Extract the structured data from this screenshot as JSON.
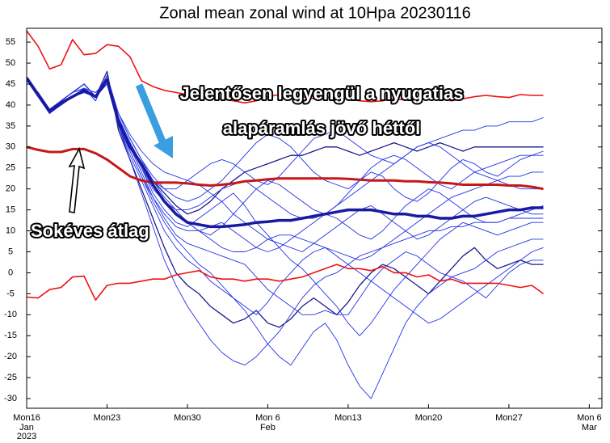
{
  "chart_data": {
    "type": "line",
    "title": "Zonal mean zonal wind at 10Hpa 20230116",
    "xlim": [
      0,
      50.1
    ],
    "ylim": [
      -32.3,
      58.3
    ],
    "yticks": [
      -30,
      -25,
      -20,
      -15,
      -10,
      -5,
      0,
      5,
      10,
      15,
      20,
      25,
      30,
      35,
      40,
      45,
      50,
      55
    ],
    "xticks": [
      {
        "value": 0,
        "label": "Mon16",
        "sub": [
          "Jan",
          "2023"
        ]
      },
      {
        "value": 7,
        "label": "Mon23"
      },
      {
        "value": 14,
        "label": "Mon30"
      },
      {
        "value": 21,
        "label": "Mon 6",
        "sub": [
          "Feb"
        ]
      },
      {
        "value": 28,
        "label": "Mon13"
      },
      {
        "value": 35,
        "label": "Mon20"
      },
      {
        "value": 42,
        "label": "Mon27"
      },
      {
        "value": 49,
        "label": "Mon 6",
        "sub": [
          "Mar"
        ]
      }
    ],
    "x": [
      0,
      1,
      2,
      3,
      4,
      5,
      6,
      7,
      8,
      9,
      10,
      11,
      12,
      13,
      14,
      15,
      16,
      17,
      18,
      19,
      20,
      21,
      22,
      23,
      24,
      25,
      26,
      27,
      28,
      29,
      30,
      31,
      32,
      33,
      34,
      35,
      36,
      37,
      38,
      39,
      40,
      41,
      42,
      43,
      44,
      45
    ],
    "series": [
      {
        "color": "#2233e6",
        "width": 0.9,
        "values": [
          46,
          43,
          39,
          40,
          42,
          44,
          41,
          47,
          38,
          32,
          27,
          22,
          18,
          15,
          12,
          10,
          9,
          11,
          14,
          17,
          20,
          22,
          21,
          19,
          17,
          15,
          14,
          16,
          19,
          22,
          24,
          23,
          20,
          18,
          17,
          19,
          22,
          25,
          27,
          26,
          24,
          23,
          25,
          27,
          28,
          29
        ]
      },
      {
        "color": "#1b1b8a",
        "width": 1.3,
        "values": [
          46,
          42,
          38,
          41,
          43,
          45,
          42,
          48,
          34,
          27,
          20,
          13,
          6,
          0,
          -3,
          -5,
          -8,
          -10,
          -12,
          -11,
          -9,
          -12,
          -13,
          -11,
          -8,
          -6,
          -8,
          -10,
          -7,
          -3,
          0,
          2,
          1,
          -1,
          -3,
          -5,
          -2,
          1,
          4,
          6,
          3,
          1,
          2,
          3,
          2,
          2
        ]
      },
      {
        "color": "#1b1b8a",
        "width": 1.3,
        "values": [
          46,
          42,
          39,
          40,
          42,
          43,
          42,
          46,
          37,
          31,
          26,
          22,
          19,
          16,
          14,
          15,
          17,
          20,
          22,
          24,
          25,
          26,
          27,
          28,
          28,
          29,
          30,
          30,
          29,
          28,
          29,
          30,
          31,
          30,
          29,
          30,
          31,
          30,
          29,
          30,
          30,
          30,
          30,
          30,
          30,
          30
        ]
      },
      {
        "color": "#2233e6",
        "width": 0.9,
        "values": [
          46,
          43,
          39,
          41,
          43,
          44,
          43,
          45,
          36,
          29,
          23,
          17,
          12,
          8,
          5,
          2,
          0,
          -3,
          -6,
          -9,
          -13,
          -17,
          -20,
          -22,
          -18,
          -14,
          -12,
          -16,
          -22,
          -27,
          -30,
          -24,
          -18,
          -12,
          -8,
          -5,
          -3,
          -1,
          0,
          1,
          3,
          5,
          6,
          7,
          8,
          8
        ]
      },
      {
        "color": "#2233e6",
        "width": 0.9,
        "values": [
          46,
          42,
          38,
          40,
          42,
          44,
          41,
          47,
          37,
          30,
          25,
          20,
          17,
          15,
          15,
          16,
          18,
          20,
          21,
          22,
          20,
          18,
          16,
          14,
          13,
          13,
          14,
          16,
          18,
          20,
          22,
          24,
          26,
          28,
          30,
          31,
          32,
          33,
          34,
          34,
          35,
          35,
          36,
          36,
          36,
          37
        ]
      },
      {
        "color": "#2233e6",
        "width": 0.9,
        "values": [
          46,
          42,
          39,
          41,
          43,
          45,
          42,
          46,
          35,
          28,
          22,
          16,
          10,
          6,
          3,
          1,
          -2,
          -4,
          -6,
          -8,
          -10,
          -7,
          -3,
          0,
          3,
          5,
          6,
          4,
          2,
          0,
          -2,
          -4,
          -6,
          -8,
          -10,
          -12,
          -11,
          -9,
          -7,
          -5,
          -3,
          -1,
          1,
          3,
          5,
          6
        ]
      },
      {
        "color": "#2233e6",
        "width": 0.9,
        "values": [
          46,
          43,
          38,
          40,
          42,
          43,
          42,
          45,
          38,
          33,
          29,
          26,
          24,
          23,
          22,
          21,
          19,
          17,
          14,
          12,
          10,
          8,
          7,
          6,
          5,
          7,
          9,
          11,
          13,
          15,
          16,
          14,
          12,
          10,
          8,
          9,
          11,
          13,
          15,
          17,
          18,
          17,
          16,
          15,
          14,
          14
        ]
      },
      {
        "color": "#2233e6",
        "width": 0.9,
        "values": [
          46,
          42,
          39,
          41,
          43,
          44,
          42,
          47,
          36,
          30,
          24,
          18,
          13,
          9,
          7,
          6,
          5,
          4,
          3,
          2,
          -1,
          -4,
          -6,
          -8,
          -10,
          -10,
          -9,
          -10,
          -10,
          -6,
          -2,
          1,
          3,
          5,
          4,
          2,
          0,
          -1,
          -2,
          -4,
          -6,
          -3,
          0,
          2,
          3,
          3
        ]
      },
      {
        "color": "#2233e6",
        "width": 0.9,
        "values": [
          46,
          42,
          39,
          40,
          42,
          44,
          43,
          46,
          38,
          32,
          27,
          23,
          20,
          18,
          17,
          18,
          20,
          22,
          25,
          28,
          31,
          33,
          32,
          30,
          27,
          24,
          22,
          21,
          20,
          22,
          25,
          27,
          28,
          27,
          25,
          23,
          21,
          20,
          22,
          24,
          25,
          26,
          27,
          28,
          28,
          28
        ]
      },
      {
        "color": "#2233e6",
        "width": 0.9,
        "values": [
          46,
          43,
          38,
          41,
          43,
          45,
          42,
          46,
          35,
          29,
          23,
          18,
          14,
          11,
          10,
          10,
          11,
          12,
          10,
          8,
          6,
          5,
          6,
          8,
          10,
          12,
          14,
          13,
          11,
          9,
          8,
          10,
          13,
          16,
          18,
          20,
          19,
          17,
          15,
          13,
          12,
          12,
          13,
          14,
          15,
          16
        ]
      },
      {
        "color": "#2233e6",
        "width": 0.9,
        "values": [
          46,
          42,
          39,
          40,
          42,
          43,
          42,
          47,
          37,
          31,
          25,
          19,
          15,
          12,
          11,
          13,
          15,
          17,
          19,
          16,
          12,
          9,
          6,
          3,
          1,
          -2,
          -5,
          -8,
          -12,
          -15,
          -12,
          -8,
          -4,
          -1,
          2,
          5,
          8,
          10,
          12,
          11,
          10,
          9,
          10,
          11,
          12,
          12
        ]
      },
      {
        "color": "#2233e6",
        "width": 0.9,
        "values": [
          46,
          42,
          38,
          41,
          43,
          44,
          42,
          46,
          36,
          30,
          26,
          22,
          20,
          20,
          22,
          24,
          26,
          27,
          26,
          24,
          22,
          21,
          23,
          26,
          29,
          32,
          33,
          34,
          32,
          30,
          28,
          27,
          26,
          28,
          30,
          31,
          30,
          28,
          26,
          24,
          23,
          22,
          21,
          20,
          20,
          20
        ]
      },
      {
        "color": "#2233e6",
        "width": 0.9,
        "values": [
          46,
          43,
          39,
          40,
          42,
          44,
          42,
          45,
          35,
          27,
          19,
          11,
          3,
          -3,
          -8,
          -12,
          -16,
          -19,
          -21,
          -22,
          -20,
          -17,
          -14,
          -10,
          -6,
          -3,
          -1,
          0,
          2,
          4,
          5,
          6,
          7,
          8,
          9,
          10,
          10,
          11,
          11,
          12,
          12,
          12,
          13,
          13,
          13,
          13
        ]
      },
      {
        "color": "#2233e6",
        "width": 0.9,
        "values": [
          46,
          42,
          39,
          41,
          43,
          45,
          42,
          47,
          37,
          31,
          26,
          21,
          17,
          14,
          12,
          10,
          8,
          6,
          5,
          5,
          6,
          8,
          9,
          9,
          8,
          7,
          6,
          5,
          4,
          3,
          4,
          6,
          8,
          10,
          12,
          14,
          16,
          18,
          19,
          20,
          21,
          22,
          23,
          23,
          24,
          24
        ]
      },
      {
        "color": "#ee1111",
        "width": 1.6,
        "values": [
          57.7,
          54,
          48.6,
          49.6,
          55.6,
          52,
          52.3,
          54.4,
          54,
          51.5,
          45.8,
          44.4,
          43.5,
          43,
          42.5,
          42.8,
          42,
          41.5,
          41,
          40.5,
          41,
          42,
          42.5,
          42.2,
          42,
          41.5,
          41.8,
          42,
          41.5,
          41,
          40.8,
          41,
          41.5,
          41.2,
          41.5,
          42,
          41.5,
          41,
          41.5,
          42,
          42.3,
          42,
          41.8,
          42.5,
          42.3,
          42.3
        ]
      },
      {
        "color": "#ee1111",
        "width": 1.6,
        "values": [
          -5.8,
          -6,
          -4,
          -3.5,
          -1,
          -0.8,
          -6.5,
          -3,
          -2.5,
          -2.5,
          -2,
          -1.5,
          -1.5,
          -0.5,
          0,
          0.5,
          -1,
          -1.5,
          -1.5,
          -2,
          -1.5,
          -1.5,
          -2,
          -1.5,
          -1,
          0,
          1,
          2,
          1,
          1,
          0.5,
          1.5,
          0,
          0,
          -1,
          -0.5,
          -2,
          -1.5,
          -2.5,
          -2.5,
          -2.5,
          -2.5,
          -3,
          -3.5,
          -3,
          -5
        ]
      },
      {
        "color": "#c41818",
        "width": 3,
        "values": [
          30,
          29.3,
          28.8,
          28.8,
          29.5,
          29.5,
          28.5,
          27,
          25,
          23,
          22,
          21.5,
          21.5,
          21.5,
          21.3,
          21,
          20.8,
          21,
          21.3,
          21.8,
          22,
          22.3,
          22.5,
          22.5,
          22.5,
          22.5,
          22.5,
          22.5,
          22.4,
          22.2,
          22,
          22,
          22,
          21.8,
          21.8,
          21.6,
          21.5,
          21.3,
          21,
          21,
          21,
          21,
          20.8,
          20.8,
          20.5,
          20
        ]
      },
      {
        "color": "#1a1aa0",
        "width": 3.5,
        "values": [
          46.5,
          42.5,
          38.5,
          40.5,
          42,
          43.5,
          42,
          46,
          36,
          30,
          26,
          21,
          17,
          14,
          12,
          11.5,
          11,
          11,
          11.2,
          11.5,
          12,
          12.2,
          12.5,
          12.5,
          13,
          13.5,
          14,
          14.5,
          15,
          15,
          15,
          14.5,
          14,
          14,
          13.5,
          13.5,
          13,
          13,
          13.5,
          13.5,
          14,
          14.5,
          15,
          15,
          15.5,
          15.5
        ]
      }
    ],
    "annotations": [
      "Jelentősen legyengül a nyugatias",
      "alapáramlás jövő héttől",
      "Sokéves átlag"
    ]
  }
}
